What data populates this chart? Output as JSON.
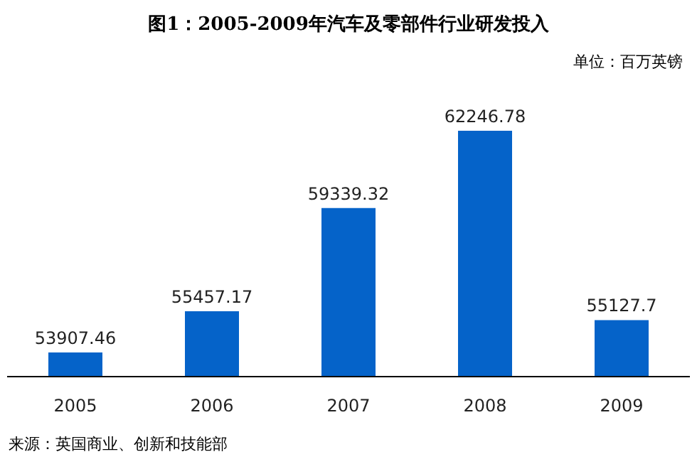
{
  "chart_data": {
    "type": "bar",
    "title": "图1：2005-2009年汽车及零部件行业研发投入",
    "annotations": [
      "单位：百万英镑",
      "来源：英国商业、创新和技能部"
    ],
    "categories": [
      "2005",
      "2006",
      "2007",
      "2008",
      "2009"
    ],
    "values": [
      53907.46,
      55457.17,
      59339.32,
      62246.78,
      55127.7
    ],
    "color": "#0563c9",
    "ylim": [
      53000,
      62246.78
    ],
    "data_labels": true,
    "grid": false,
    "legend": false
  }
}
